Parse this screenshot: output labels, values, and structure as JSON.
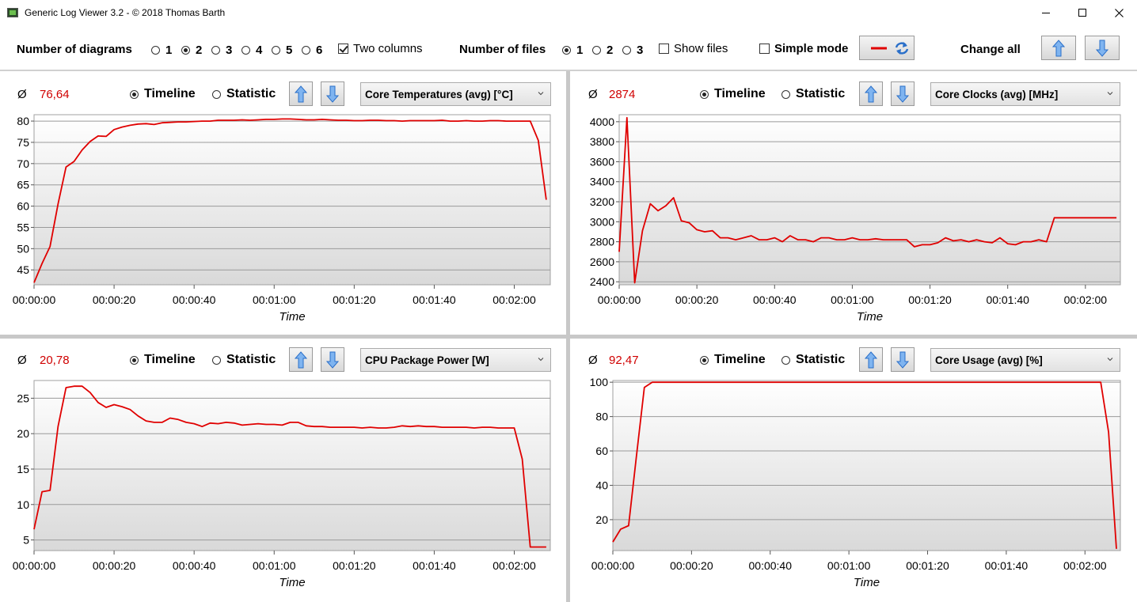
{
  "window": {
    "title": "Generic Log Viewer 3.2 - © 2018 Thomas Barth"
  },
  "toolbar": {
    "num_diagrams_label": "Number of diagrams",
    "diagram_options": [
      "1",
      "2",
      "3",
      "4",
      "5",
      "6"
    ],
    "diagram_selected": "2",
    "two_columns_label": "Two columns",
    "two_columns_checked": true,
    "num_files_label": "Number of files",
    "file_options": [
      "1",
      "2",
      "3"
    ],
    "file_selected": "1",
    "show_files_label": "Show files",
    "show_files_checked": false,
    "simple_mode_label": "Simple mode",
    "simple_mode_checked": false,
    "change_all_label": "Change all",
    "line_color": "#e00000",
    "icons": {
      "line_style": "red-line-icon",
      "refresh": "refresh-icon",
      "up": "arrow-up-icon",
      "down": "arrow-down-icon"
    }
  },
  "panels": [
    {
      "avg_symbol": "Ø",
      "avg_value": "76,64",
      "timeline_label": "Timeline",
      "statistic_label": "Statistic",
      "mode_selected": "Timeline",
      "sensor": "Core Temperatures (avg) [°C]",
      "chart_data": {
        "type": "line",
        "xlabel": "Time",
        "x_ticks": [
          "00:00:00",
          "00:00:20",
          "00:00:40",
          "00:01:00",
          "00:01:20",
          "00:01:40",
          "00:02:00"
        ],
        "x_tick_seconds": [
          0,
          20,
          40,
          60,
          80,
          100,
          120
        ],
        "xlim_seconds": [
          0,
          129
        ],
        "y_ticks": [
          45,
          50,
          55,
          60,
          65,
          70,
          75,
          80
        ],
        "ylim": [
          41.5,
          81.5
        ],
        "grid": true,
        "series": [
          {
            "color": "#e00000",
            "x_seconds": [
              0,
              2,
              4,
              6,
              8,
              10,
              12,
              14,
              16,
              18,
              20,
              22,
              24,
              26,
              28,
              30,
              32,
              34,
              36,
              38,
              40,
              42,
              44,
              46,
              48,
              50,
              52,
              54,
              56,
              58,
              60,
              62,
              64,
              66,
              68,
              70,
              72,
              74,
              76,
              78,
              80,
              82,
              84,
              86,
              88,
              90,
              92,
              94,
              96,
              98,
              100,
              102,
              104,
              106,
              108,
              110,
              112,
              114,
              116,
              118,
              120,
              122,
              124,
              126,
              128
            ],
            "values": [
              42,
              46.5,
              50.5,
              60.5,
              69.2,
              70.5,
              73.2,
              75.2,
              76.5,
              76.4,
              78,
              78.6,
              79,
              79.3,
              79.4,
              79.2,
              79.6,
              79.7,
              79.8,
              79.8,
              79.9,
              80,
              80,
              80.2,
              80.2,
              80.2,
              80.3,
              80.2,
              80.3,
              80.4,
              80.4,
              80.5,
              80.5,
              80.4,
              80.3,
              80.3,
              80.4,
              80.3,
              80.2,
              80.2,
              80.1,
              80.1,
              80.2,
              80.2,
              80.1,
              80.1,
              80,
              80.1,
              80.1,
              80.1,
              80.1,
              80.2,
              80,
              80,
              80.1,
              80,
              80,
              80.1,
              80.1,
              80,
              80,
              80,
              80,
              75.5,
              61.5
            ]
          }
        ]
      }
    },
    {
      "avg_symbol": "Ø",
      "avg_value": "2874",
      "timeline_label": "Timeline",
      "statistic_label": "Statistic",
      "mode_selected": "Timeline",
      "sensor": "Core Clocks (avg) [MHz]",
      "chart_data": {
        "type": "line",
        "xlabel": "Time",
        "x_ticks": [
          "00:00:00",
          "00:00:20",
          "00:00:40",
          "00:01:00",
          "00:01:20",
          "00:01:40",
          "00:02:00"
        ],
        "x_tick_seconds": [
          0,
          20,
          40,
          60,
          80,
          100,
          120
        ],
        "xlim_seconds": [
          0,
          129
        ],
        "y_ticks": [
          2400,
          2600,
          2800,
          3000,
          3200,
          3400,
          3600,
          3800,
          4000
        ],
        "ylim": [
          2370,
          4070
        ],
        "grid": true,
        "series": [
          {
            "color": "#e00000",
            "x_seconds": [
              0,
              2,
              4,
              6,
              8,
              10,
              12,
              14,
              16,
              18,
              20,
              22,
              24,
              26,
              28,
              30,
              32,
              34,
              36,
              38,
              40,
              42,
              44,
              46,
              48,
              50,
              52,
              54,
              56,
              58,
              60,
              62,
              64,
              66,
              68,
              70,
              72,
              74,
              76,
              78,
              80,
              82,
              84,
              86,
              88,
              90,
              92,
              94,
              96,
              98,
              100,
              102,
              104,
              106,
              108,
              110,
              112,
              114,
              116,
              118,
              120,
              122,
              124,
              126,
              128
            ],
            "values": [
              2700,
              4040,
              2390,
              2910,
              3180,
              3110,
              3160,
              3240,
              3010,
              2990,
              2920,
              2900,
              2910,
              2840,
              2840,
              2820,
              2840,
              2860,
              2820,
              2820,
              2840,
              2800,
              2860,
              2820,
              2820,
              2800,
              2840,
              2840,
              2820,
              2820,
              2840,
              2820,
              2820,
              2830,
              2820,
              2820,
              2820,
              2820,
              2750,
              2770,
              2770,
              2790,
              2840,
              2810,
              2820,
              2800,
              2820,
              2800,
              2790,
              2840,
              2780,
              2770,
              2800,
              2800,
              2820,
              2800,
              3040,
              3040,
              3040,
              3040,
              3040,
              3040,
              3040,
              3040,
              3040
            ]
          }
        ]
      }
    },
    {
      "avg_symbol": "Ø",
      "avg_value": "20,78",
      "timeline_label": "Timeline",
      "statistic_label": "Statistic",
      "mode_selected": "Timeline",
      "sensor": "CPU Package Power [W]",
      "chart_data": {
        "type": "line",
        "xlabel": "Time",
        "x_ticks": [
          "00:00:00",
          "00:00:20",
          "00:00:40",
          "00:01:00",
          "00:01:20",
          "00:01:40",
          "00:02:00"
        ],
        "x_tick_seconds": [
          0,
          20,
          40,
          60,
          80,
          100,
          120
        ],
        "xlim_seconds": [
          0,
          129
        ],
        "y_ticks": [
          5,
          10,
          15,
          20,
          25
        ],
        "ylim": [
          3.5,
          27.5
        ],
        "grid": true,
        "series": [
          {
            "color": "#e00000",
            "x_seconds": [
              0,
              2,
              4,
              6,
              8,
              10,
              12,
              14,
              16,
              18,
              20,
              22,
              24,
              26,
              28,
              30,
              32,
              34,
              36,
              38,
              40,
              42,
              44,
              46,
              48,
              50,
              52,
              54,
              56,
              58,
              60,
              62,
              64,
              66,
              68,
              70,
              72,
              74,
              76,
              78,
              80,
              82,
              84,
              86,
              88,
              90,
              92,
              94,
              96,
              98,
              100,
              102,
              104,
              106,
              108,
              110,
              112,
              114,
              116,
              118,
              120,
              122,
              124,
              126,
              128
            ],
            "values": [
              6.5,
              11.8,
              12,
              21,
              26.5,
              26.7,
              26.7,
              25.8,
              24.4,
              23.7,
              24.1,
              23.8,
              23.4,
              22.5,
              21.8,
              21.6,
              21.6,
              22.2,
              22,
              21.6,
              21.4,
              21,
              21.5,
              21.4,
              21.6,
              21.5,
              21.2,
              21.3,
              21.4,
              21.3,
              21.3,
              21.2,
              21.6,
              21.6,
              21.1,
              21,
              21,
              20.9,
              20.9,
              20.9,
              20.9,
              20.8,
              20.9,
              20.8,
              20.8,
              20.9,
              21.1,
              21,
              21.1,
              21,
              21,
              20.9,
              20.9,
              20.9,
              20.9,
              20.8,
              20.9,
              20.9,
              20.8,
              20.8,
              20.8,
              16.4,
              4,
              4,
              4
            ]
          }
        ]
      }
    },
    {
      "avg_symbol": "Ø",
      "avg_value": "92,47",
      "timeline_label": "Timeline",
      "statistic_label": "Statistic",
      "mode_selected": "Timeline",
      "sensor": "Core Usage (avg) [%]",
      "chart_data": {
        "type": "line",
        "xlabel": "Time",
        "x_ticks": [
          "00:00:00",
          "00:00:20",
          "00:00:40",
          "00:01:00",
          "00:01:20",
          "00:01:40",
          "00:02:00"
        ],
        "x_tick_seconds": [
          0,
          20,
          40,
          60,
          80,
          100,
          120
        ],
        "xlim_seconds": [
          0,
          129
        ],
        "y_ticks": [
          20,
          40,
          60,
          80,
          100
        ],
        "ylim": [
          2,
          101
        ],
        "grid": true,
        "series": [
          {
            "color": "#e00000",
            "x_seconds": [
              0,
              2,
              4,
              6,
              8,
              10,
              12,
              14,
              16,
              18,
              20,
              30,
              40,
              50,
              60,
              70,
              80,
              90,
              100,
              110,
              116,
              118,
              120,
              122,
              124,
              126,
              128
            ],
            "values": [
              7,
              14.5,
              16.5,
              57,
              97,
              100,
              100,
              100,
              100,
              100,
              100,
              100,
              100,
              100,
              100,
              100,
              100,
              100,
              100,
              100,
              100,
              100,
              100,
              100,
              100,
              71,
              3
            ]
          }
        ]
      }
    }
  ]
}
